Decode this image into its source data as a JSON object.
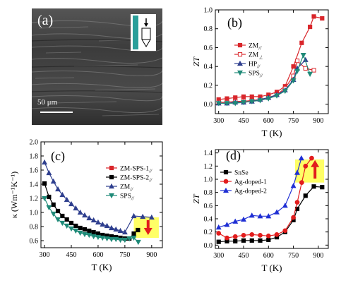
{
  "sem_panel": {
    "label": "(a)",
    "scale_bar": "50 μm"
  },
  "chart_data": [
    {
      "panel": "(b)",
      "type": "line",
      "xlabel": "T (K)",
      "ylabel": "ZT",
      "xlim": [
        280,
        960
      ],
      "ylim": [
        -0.1,
        1.0
      ],
      "xticks": [
        300,
        450,
        600,
        750,
        900
      ],
      "yticks": [
        0.0,
        0.2,
        0.4,
        0.6,
        0.8,
        1.0
      ],
      "legend_position": "middle-left",
      "series": [
        {
          "name": "ZM",
          "subscript": "//",
          "color": "#d9262b",
          "marker": "square",
          "filled": true,
          "x": [
            300,
            350,
            400,
            450,
            500,
            550,
            600,
            650,
            700,
            750,
            800,
            850,
            873,
            923
          ],
          "y": [
            0.05,
            0.06,
            0.07,
            0.08,
            0.08,
            0.08,
            0.1,
            0.13,
            0.19,
            0.4,
            0.65,
            0.82,
            0.93,
            0.91
          ]
        },
        {
          "name": "ZM",
          "subscript": "⊥",
          "color": "#d9262b",
          "marker": "square",
          "filled": false,
          "x": [
            300,
            350,
            400,
            450,
            500,
            550,
            600,
            650,
            700,
            750,
            773,
            823,
            873
          ],
          "y": [
            0.02,
            0.02,
            0.03,
            0.03,
            0.04,
            0.05,
            0.07,
            0.1,
            0.17,
            0.3,
            0.46,
            0.38,
            0.36
          ]
        },
        {
          "name": "HP",
          "subscript": "//",
          "color": "#2f3f8e",
          "marker": "triangle",
          "filled": true,
          "x": [
            300,
            350,
            400,
            450,
            500,
            550,
            600,
            650,
            700,
            750,
            773,
            823
          ],
          "y": [
            0.01,
            0.01,
            0.02,
            0.02,
            0.03,
            0.05,
            0.07,
            0.1,
            0.15,
            0.26,
            0.38,
            0.47
          ]
        },
        {
          "name": "SPS",
          "subscript": "//",
          "color": "#1f8a78",
          "marker": "triangle-down",
          "filled": true,
          "x": [
            300,
            350,
            400,
            450,
            500,
            550,
            600,
            650,
            700,
            750,
            773,
            810,
            850
          ],
          "y": [
            0.01,
            0.01,
            0.01,
            0.02,
            0.03,
            0.04,
            0.06,
            0.09,
            0.14,
            0.25,
            0.35,
            0.52,
            0.32
          ]
        }
      ]
    },
    {
      "panel": "(c)",
      "type": "line",
      "xlabel": "T (K)",
      "ylabel": "κ (Wm⁻¹K⁻¹)",
      "xlim": [
        280,
        960
      ],
      "ylim": [
        0.5,
        2.0
      ],
      "xticks": [
        300,
        450,
        600,
        750,
        900
      ],
      "yticks": [
        0.6,
        0.8,
        1.0,
        1.2,
        1.4,
        1.6,
        1.8,
        2.0
      ],
      "legend_position": "top-right",
      "highlight_box": {
        "x": [
          800,
          940
        ],
        "y": [
          0.64,
          0.93
        ],
        "color": "#ffff66"
      },
      "arrow": {
        "direction": "down",
        "x": 880,
        "y_from": 0.89,
        "y_to": 0.7,
        "color": "#e21d1d"
      },
      "series": [
        {
          "name": "ZM-SPS-1",
          "subscript": "//",
          "color": "#d9262b",
          "marker": "square",
          "filled": true,
          "x": [],
          "y": []
        },
        {
          "name": "ZM-SPS-2",
          "subscript": "//",
          "color": "#000000",
          "marker": "square",
          "filled": true,
          "x": [
            300,
            325,
            350,
            375,
            400,
            425,
            450,
            475,
            500,
            525,
            550,
            575,
            600,
            625,
            650,
            675,
            700,
            725,
            750,
            775,
            800,
            823
          ],
          "y": [
            1.41,
            1.22,
            1.11,
            1.02,
            0.95,
            0.9,
            0.85,
            0.81,
            0.78,
            0.76,
            0.74,
            0.72,
            0.7,
            0.68,
            0.67,
            0.66,
            0.65,
            0.64,
            0.63,
            0.63,
            0.7,
            0.75
          ]
        },
        {
          "name": "ZM",
          "subscript": "//",
          "color": "#2f3f8e",
          "marker": "triangle",
          "filled": true,
          "x": [
            300,
            325,
            350,
            375,
            400,
            425,
            450,
            475,
            500,
            525,
            550,
            575,
            600,
            625,
            650,
            675,
            700,
            725,
            750,
            800,
            850,
            900
          ],
          "y": [
            1.71,
            1.56,
            1.44,
            1.33,
            1.25,
            1.18,
            1.12,
            1.06,
            1.0,
            0.96,
            0.92,
            0.89,
            0.86,
            0.83,
            0.81,
            0.78,
            0.76,
            0.74,
            0.72,
            0.95,
            0.94,
            0.93
          ]
        },
        {
          "name": "SPS",
          "subscript": "//",
          "color": "#1f8a78",
          "marker": "triangle-down",
          "filled": true,
          "x": [
            300,
            325,
            350,
            375,
            400,
            425,
            450,
            475,
            500,
            525,
            550,
            575,
            600,
            625,
            650,
            675,
            700,
            725,
            750,
            775,
            800,
            825
          ],
          "y": [
            1.2,
            1.07,
            0.98,
            0.9,
            0.85,
            0.81,
            0.77,
            0.74,
            0.71,
            0.69,
            0.68,
            0.66,
            0.65,
            0.64,
            0.63,
            0.62,
            0.62,
            0.61,
            0.61,
            0.63,
            0.64,
            0.58
          ]
        }
      ]
    },
    {
      "panel": "(d)",
      "type": "line",
      "xlabel": "T (K)",
      "ylabel": "ZT",
      "xlim": [
        280,
        960
      ],
      "ylim": [
        -0.05,
        1.45
      ],
      "xticks": [
        300,
        450,
        600,
        750,
        900
      ],
      "yticks": [
        0.0,
        0.2,
        0.4,
        0.6,
        0.8,
        1.0,
        1.2,
        1.4
      ],
      "legend_position": "top-left",
      "highlight_box": {
        "x": [
          760,
          935
        ],
        "y": [
          0.95,
          1.3
        ],
        "color": "#ffff66"
      },
      "arrow": {
        "direction": "up",
        "x": 880,
        "y_from": 1.01,
        "y_to": 1.27,
        "color": "#e21d1d"
      },
      "series": [
        {
          "name": "SnSe",
          "color": "#000000",
          "marker": "square",
          "filled": true,
          "x": [
            300,
            350,
            400,
            450,
            500,
            550,
            600,
            650,
            700,
            750,
            773,
            823,
            873,
            923
          ],
          "y": [
            0.05,
            0.06,
            0.06,
            0.07,
            0.07,
            0.07,
            0.08,
            0.12,
            0.2,
            0.38,
            0.55,
            0.75,
            0.89,
            0.88
          ]
        },
        {
          "name": "Ag-doped-1",
          "color": "#e21d1d",
          "marker": "circle",
          "filled": true,
          "x": [
            300,
            350,
            400,
            450,
            500,
            550,
            600,
            650,
            700,
            750,
            773,
            800,
            823,
            860
          ],
          "y": [
            0.18,
            0.11,
            0.13,
            0.15,
            0.16,
            0.15,
            0.14,
            0.16,
            0.22,
            0.42,
            0.65,
            0.95,
            1.2,
            1.32
          ]
        },
        {
          "name": "Ag-doped-2",
          "color": "#1f2fd4",
          "marker": "triangle",
          "filled": true,
          "x": [
            300,
            350,
            400,
            450,
            500,
            550,
            600,
            650,
            700,
            750,
            773,
            798
          ],
          "y": [
            0.27,
            0.31,
            0.36,
            0.39,
            0.45,
            0.44,
            0.44,
            0.5,
            0.6,
            0.9,
            1.1,
            1.32
          ]
        }
      ]
    }
  ]
}
